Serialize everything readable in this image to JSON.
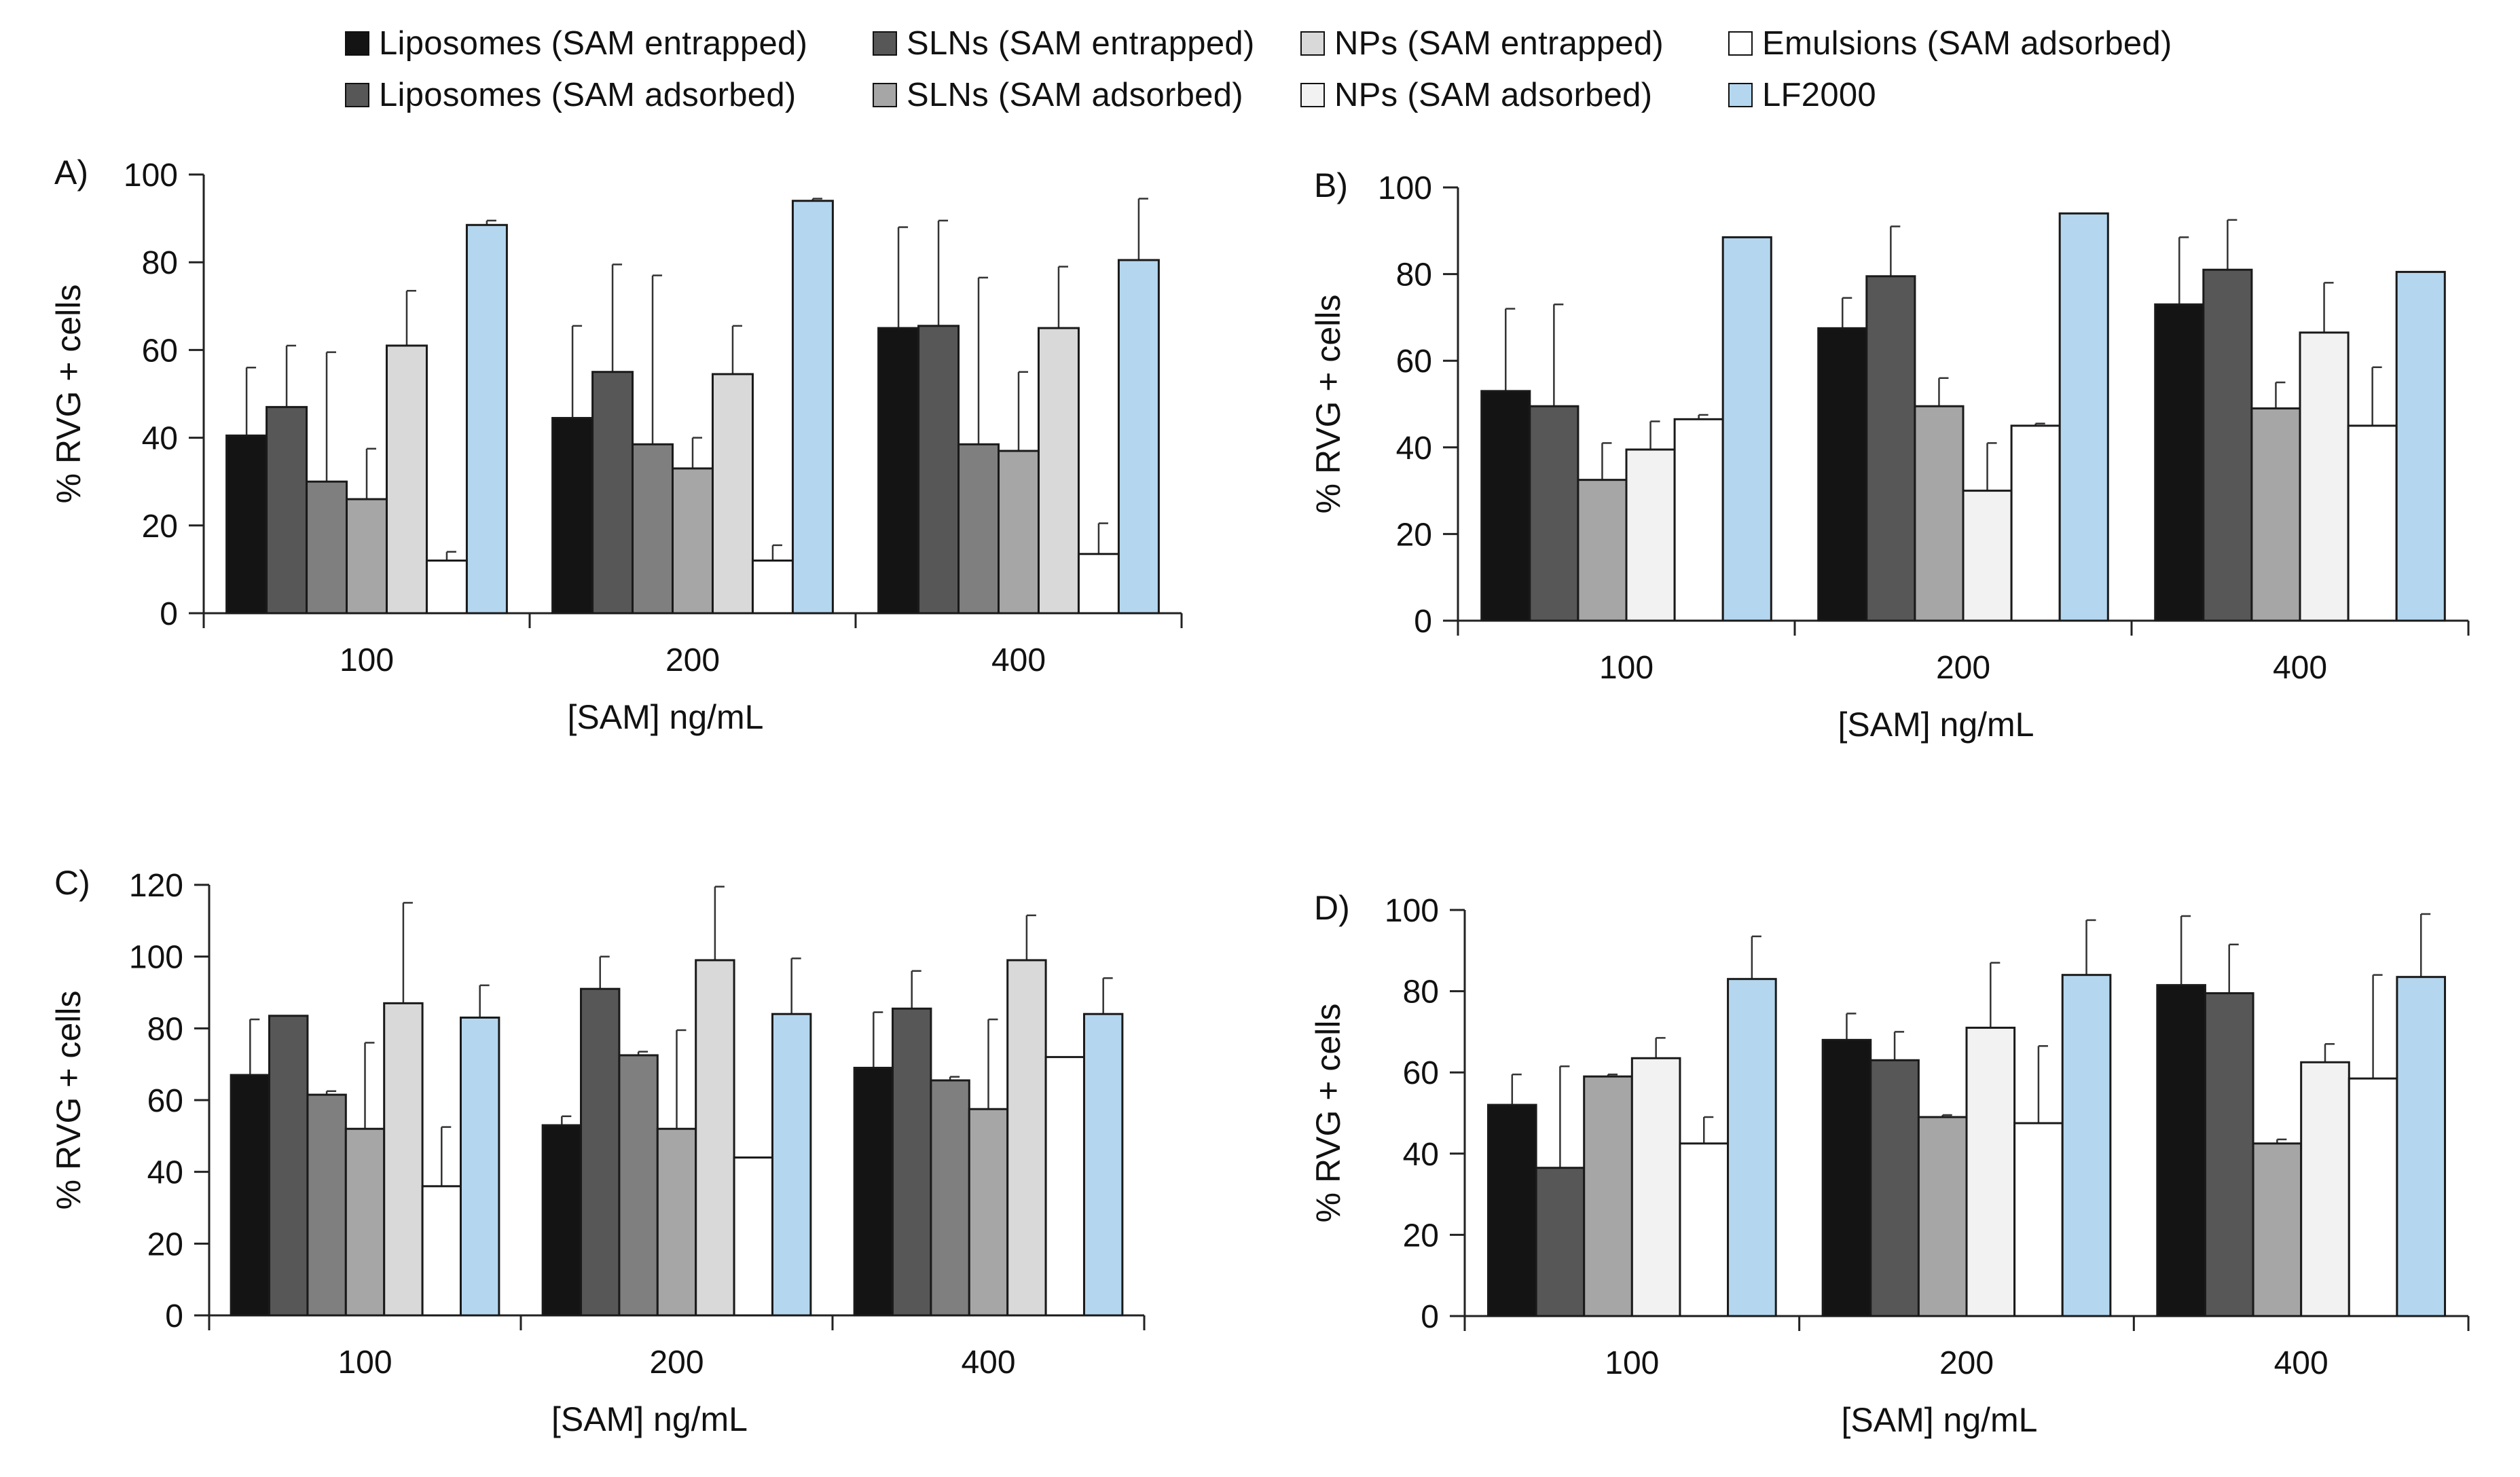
{
  "legend": [
    {
      "label": "Liposomes (SAM entrapped)",
      "color": "#141414"
    },
    {
      "label": "SLNs (SAM entrapped)",
      "color": "#575757"
    },
    {
      "label": "NPs (SAM entrapped)",
      "color": "#d9d9d9"
    },
    {
      "label": "Emulsions (SAM adsorbed)",
      "color": "#ffffff"
    },
    {
      "label": "Liposomes (SAM adsorbed)",
      "color": "#575757"
    },
    {
      "label": "SLNs (SAM adsorbed)",
      "color": "#a6a6a6"
    },
    {
      "label": "NPs (SAM adsorbed)",
      "color": "#f2f2f2"
    },
    {
      "label": "LF2000",
      "color": "#b4d7ef"
    }
  ],
  "chart_data": [
    {
      "type": "bar",
      "panel": "A)",
      "categories": [
        "100",
        "200",
        "400"
      ],
      "xlabel": "[SAM] ng/mL",
      "ylabel": "% RVG + cells",
      "ylim": [
        0,
        100
      ],
      "yticks": [
        0,
        20,
        40,
        60,
        80,
        100
      ],
      "series": [
        {
          "color": "#141414",
          "values": [
            40.5,
            44.5,
            65
          ],
          "errors": [
            15.5,
            21,
            23
          ]
        },
        {
          "color": "#575757",
          "values": [
            47,
            55,
            65.5
          ],
          "errors": [
            14,
            24.5,
            24
          ]
        },
        {
          "color": "#7f7f7f",
          "values": [
            30,
            38.5,
            38.5
          ],
          "errors": [
            29.5,
            38.5,
            38
          ]
        },
        {
          "color": "#a6a6a6",
          "values": [
            26,
            33,
            37
          ],
          "errors": [
            11.5,
            7,
            18
          ]
        },
        {
          "color": "#d9d9d9",
          "values": [
            61,
            54.5,
            65
          ],
          "errors": [
            12.5,
            11,
            14
          ]
        },
        {
          "color": "#ffffff",
          "values": [
            12,
            12,
            13.5
          ],
          "errors": [
            2,
            3.5,
            7
          ]
        },
        {
          "color": "#b4d7ef",
          "values": [
            88.5,
            94,
            80.5
          ],
          "errors": [
            1,
            0.5,
            14
          ]
        }
      ]
    },
    {
      "type": "bar",
      "panel": "B)",
      "categories": [
        "100",
        "200",
        "400"
      ],
      "xlabel": "[SAM] ng/mL",
      "ylabel": "% RVG + cells",
      "ylim": [
        0,
        100
      ],
      "yticks": [
        0,
        20,
        40,
        60,
        80,
        100
      ],
      "series": [
        {
          "color": "#141414",
          "values": [
            53,
            67.5,
            73
          ],
          "errors": [
            19,
            7,
            15.5
          ]
        },
        {
          "color": "#575757",
          "values": [
            49.5,
            79.5,
            81
          ],
          "errors": [
            23.5,
            11.5,
            11.5
          ]
        },
        {
          "color": "#a6a6a6",
          "values": [
            32.5,
            49.5,
            49
          ],
          "errors": [
            8.5,
            6.5,
            6
          ]
        },
        {
          "color": "#f2f2f2",
          "values": [
            39.5,
            30,
            66.5
          ],
          "errors": [
            6.5,
            11,
            11.5
          ]
        },
        {
          "color": "#ffffff",
          "values": [
            46.5,
            45,
            45
          ],
          "errors": [
            1,
            0.5,
            13.5
          ]
        },
        {
          "color": "#b4d7ef",
          "values": [
            88.5,
            94,
            80.5
          ],
          "errors": [
            0,
            0,
            0
          ]
        }
      ]
    },
    {
      "type": "bar",
      "panel": "C)",
      "categories": [
        "100",
        "200",
        "400"
      ],
      "xlabel": "[SAM] ng/mL",
      "ylabel": "% RVG + cells",
      "ylim": [
        0,
        120
      ],
      "yticks": [
        0,
        20,
        40,
        60,
        80,
        100,
        120
      ],
      "series": [
        {
          "color": "#141414",
          "values": [
            67,
            53,
            69
          ],
          "errors": [
            15.5,
            2.5,
            15.5
          ]
        },
        {
          "color": "#575757",
          "values": [
            83.5,
            91,
            85.5
          ],
          "errors": [
            0,
            9,
            10.5
          ]
        },
        {
          "color": "#7f7f7f",
          "values": [
            61.5,
            72.5,
            65.5
          ],
          "errors": [
            1,
            1,
            1
          ]
        },
        {
          "color": "#a6a6a6",
          "values": [
            52,
            52,
            57.5
          ],
          "errors": [
            24,
            27.5,
            25
          ]
        },
        {
          "color": "#d9d9d9",
          "values": [
            87,
            99,
            99
          ],
          "errors": [
            28,
            20.5,
            12.5
          ]
        },
        {
          "color": "#ffffff",
          "values": [
            36,
            44,
            72
          ],
          "errors": [
            16.5,
            0,
            0
          ]
        },
        {
          "color": "#b4d7ef",
          "values": [
            83,
            84,
            84
          ],
          "errors": [
            9,
            15.5,
            10
          ]
        }
      ]
    },
    {
      "type": "bar",
      "panel": "D)",
      "categories": [
        "100",
        "200",
        "400"
      ],
      "xlabel": "[SAM] ng/mL",
      "ylabel": "% RVG + cells",
      "ylim": [
        0,
        100
      ],
      "yticks": [
        0,
        20,
        40,
        60,
        80,
        100
      ],
      "series": [
        {
          "color": "#141414",
          "values": [
            52,
            68,
            81.5
          ],
          "errors": [
            7.5,
            6.5,
            17
          ]
        },
        {
          "color": "#575757",
          "values": [
            36.5,
            63,
            79.5
          ],
          "errors": [
            25,
            7,
            12
          ]
        },
        {
          "color": "#a6a6a6",
          "values": [
            59,
            49,
            42.5
          ],
          "errors": [
            0.5,
            0.5,
            1
          ]
        },
        {
          "color": "#f2f2f2",
          "values": [
            63.5,
            71,
            62.5
          ],
          "errors": [
            5,
            16,
            4.5
          ]
        },
        {
          "color": "#ffffff",
          "values": [
            42.5,
            47.5,
            58.5
          ],
          "errors": [
            6.5,
            19,
            25.5
          ]
        },
        {
          "color": "#b4d7ef",
          "values": [
            83,
            84,
            83.5
          ],
          "errors": [
            10.5,
            13.5,
            15.5
          ]
        }
      ]
    }
  ]
}
